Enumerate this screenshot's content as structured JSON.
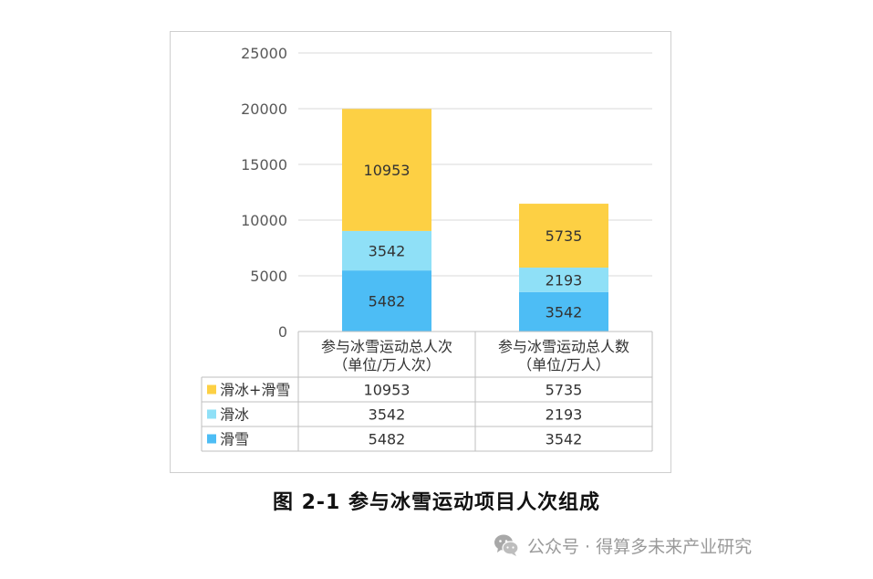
{
  "chart_data": {
    "type": "bar",
    "stacked": true,
    "categories": [
      "参与冰雪运动总人次",
      "参与冰雪运动总人数"
    ],
    "category_units": [
      "（单位/万人次）",
      "（单位/万人）"
    ],
    "series": [
      {
        "name": "滑雪",
        "values": [
          5482,
          3542
        ],
        "color": "#4dbdf5"
      },
      {
        "name": "滑冰",
        "values": [
          3542,
          2193
        ],
        "color": "#8fe0f7"
      },
      {
        "name": "滑冰+滑雪",
        "values": [
          10953,
          5735
        ],
        "color": "#fdd044"
      }
    ],
    "table_order": [
      "滑冰+滑雪",
      "滑冰",
      "滑雪"
    ],
    "y_ticks": [
      0,
      5000,
      10000,
      15000,
      20000,
      25000
    ],
    "ylim": [
      0,
      25000
    ],
    "grid": true,
    "legend": "data-table"
  },
  "caption": "图 2-1  参与冰雪运动项目人次组成",
  "watermark": {
    "text": "公众号 · 得算多未来产业研究",
    "icon": "wechat-icon"
  },
  "colors": {
    "grid": "#d9d9d9",
    "table_border": "#bfbfbf",
    "label_text": "#333333",
    "watermark": "#9a9a9a"
  }
}
